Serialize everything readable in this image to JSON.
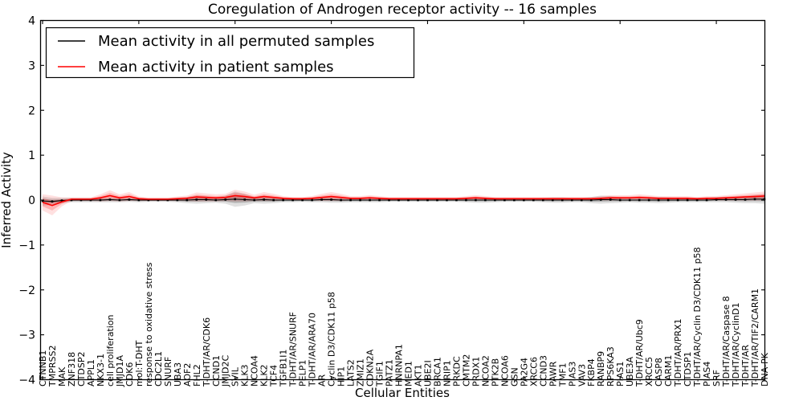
{
  "figure": {
    "background": "#ffffff",
    "frame_color": "#000000"
  },
  "chart_data": {
    "type": "line",
    "title": "Coregulation of Androgen receptor activity -- 16 samples",
    "xlabel": "Cellular Entities",
    "ylabel": "Inferred Activity",
    "ylim": [
      -4,
      4
    ],
    "grid": false,
    "legend_position": "upper left",
    "yticks": {
      "values": [
        4,
        3,
        2,
        1,
        0,
        -1,
        -2,
        -3,
        -4
      ],
      "labels": [
        "4",
        "3",
        "2",
        "1",
        "0",
        "−1",
        "−2",
        "−3",
        "−4"
      ]
    },
    "categories": [
      "CTNNB1",
      "TMPRSS2",
      "MAK",
      "ZNF318",
      "CTDSP2",
      "APPL1",
      "NKX3-1",
      "cell proliferation",
      "JMJD1A",
      "CDK6",
      "mol:T-DHT",
      "response to oxidative stress",
      "CDC2L1",
      "SNURF",
      "UBA3",
      "AOF2",
      "FHL2",
      "T-DHT/AR/CDK6",
      "CCND1",
      "JMJD2C",
      "SVIL",
      "KLK3",
      "NCOA4",
      "KLK2",
      "TCF4",
      "TGFB1I1",
      "T-DHT/AR/SNURF",
      "PELP1",
      "T-DHT/AR/ARA70",
      "AR",
      "Cyclin D3/CDK11 p58",
      "HIP1",
      "LATS2",
      "ZMIZ1",
      "CDKN2A",
      "TGIF1",
      "PATZ1",
      "HNRNPA1",
      "MED1",
      "AKT1",
      "UBE2I",
      "BRCA1",
      "NRIP1",
      "PRKDC",
      "CMTM2",
      "PRDX1",
      "NCOA2",
      "PTK2B",
      "NCOA6",
      "GSN",
      "PA2G4",
      "XRCC6",
      "CCND3",
      "PAWR",
      "TMF1",
      "PIAS3",
      "VAV3",
      "FKBP4",
      "RANBP9",
      "RPS6KA3",
      "PIAS1",
      "UBE3A",
      "T-DHT/AR/Ubc9",
      "XRCC5",
      "CASP8",
      "CARM1",
      "T-DHT/AR/PRX1",
      "CTDSP1",
      "T-DHT/AR/Cyclin D3/CDK11 p58",
      "PIAS4",
      "SRF",
      "T-DHT/AR/Caspase 8",
      "T-DHT/AR/CyclinD1",
      "T-DHT/AR",
      "T-DHT/AR/TIF2/CARM1",
      "DNA-PK"
    ],
    "series": [
      {
        "name": "Mean activity in all permuted samples",
        "color": "#000000",
        "marker": "square",
        "values": [
          -0.02,
          -0.03,
          -0.01,
          0,
          0,
          0,
          0,
          0.01,
          0,
          0.01,
          0,
          0,
          0,
          0,
          0,
          0,
          0.01,
          0.01,
          0,
          0.01,
          0.02,
          0.01,
          0,
          0.01,
          0,
          0,
          0,
          0,
          0,
          0.01,
          0.01,
          0,
          0,
          0,
          0,
          0,
          0,
          0,
          0,
          0,
          0,
          0,
          0,
          0,
          0,
          0,
          0,
          0,
          0,
          0,
          0,
          0,
          0,
          0,
          0,
          0,
          0,
          0,
          0.01,
          0.01,
          0,
          0,
          0,
          0,
          0,
          0,
          0,
          0,
          0,
          0,
          0.01,
          0.01,
          0.01,
          0.01,
          0.02,
          0.02
        ],
        "band": [
          0.1,
          0.08,
          0.06,
          0.05,
          0.05,
          0.05,
          0.05,
          0.06,
          0.05,
          0.05,
          0.05,
          0.04,
          0.04,
          0.04,
          0.05,
          0.07,
          0.09,
          0.08,
          0.06,
          0.09,
          0.17,
          0.13,
          0.07,
          0.09,
          0.07,
          0.05,
          0.05,
          0.04,
          0.05,
          0.06,
          0.07,
          0.06,
          0.05,
          0.05,
          0.05,
          0.05,
          0.04,
          0.04,
          0.04,
          0.04,
          0.04,
          0.04,
          0.04,
          0.04,
          0.05,
          0.06,
          0.06,
          0.05,
          0.04,
          0.04,
          0.04,
          0.04,
          0.05,
          0.06,
          0.06,
          0.05,
          0.05,
          0.07,
          0.09,
          0.08,
          0.06,
          0.05,
          0.06,
          0.06,
          0.07,
          0.06,
          0.05,
          0.05,
          0.05,
          0.05,
          0.06,
          0.06,
          0.07,
          0.08,
          0.09,
          0.1
        ]
      },
      {
        "name": "Mean activity in patient samples",
        "color": "#ff0000",
        "marker": null,
        "values": [
          -0.05,
          -0.12,
          -0.04,
          0.02,
          0.02,
          0.02,
          0.05,
          0.1,
          0.05,
          0.08,
          0.03,
          0.02,
          0.02,
          0.02,
          0.03,
          0.04,
          0.07,
          0.06,
          0.05,
          0.06,
          0.1,
          0.08,
          0.05,
          0.08,
          0.06,
          0.04,
          0.03,
          0.03,
          0.04,
          0.06,
          0.08,
          0.06,
          0.04,
          0.04,
          0.05,
          0.04,
          0.03,
          0.03,
          0.03,
          0.03,
          0.03,
          0.03,
          0.03,
          0.03,
          0.04,
          0.05,
          0.04,
          0.03,
          0.03,
          0.03,
          0.03,
          0.03,
          0.03,
          0.03,
          0.03,
          0.03,
          0.03,
          0.03,
          0.04,
          0.05,
          0.05,
          0.05,
          0.06,
          0.05,
          0.04,
          0.04,
          0.04,
          0.04,
          0.03,
          0.04,
          0.04,
          0.05,
          0.06,
          0.07,
          0.08,
          0.09
        ],
        "band": [
          0.18,
          0.22,
          0.1,
          0.04,
          0.04,
          0.04,
          0.08,
          0.12,
          0.08,
          0.1,
          0.05,
          0.04,
          0.04,
          0.04,
          0.05,
          0.06,
          0.1,
          0.09,
          0.08,
          0.08,
          0.13,
          0.11,
          0.07,
          0.1,
          0.08,
          0.05,
          0.04,
          0.04,
          0.05,
          0.08,
          0.1,
          0.08,
          0.05,
          0.05,
          0.06,
          0.05,
          0.04,
          0.04,
          0.04,
          0.04,
          0.04,
          0.04,
          0.04,
          0.04,
          0.05,
          0.06,
          0.05,
          0.04,
          0.04,
          0.04,
          0.04,
          0.04,
          0.04,
          0.04,
          0.04,
          0.04,
          0.04,
          0.04,
          0.05,
          0.06,
          0.06,
          0.06,
          0.07,
          0.06,
          0.05,
          0.05,
          0.05,
          0.05,
          0.04,
          0.05,
          0.05,
          0.06,
          0.07,
          0.08,
          0.09,
          0.1
        ]
      }
    ]
  }
}
